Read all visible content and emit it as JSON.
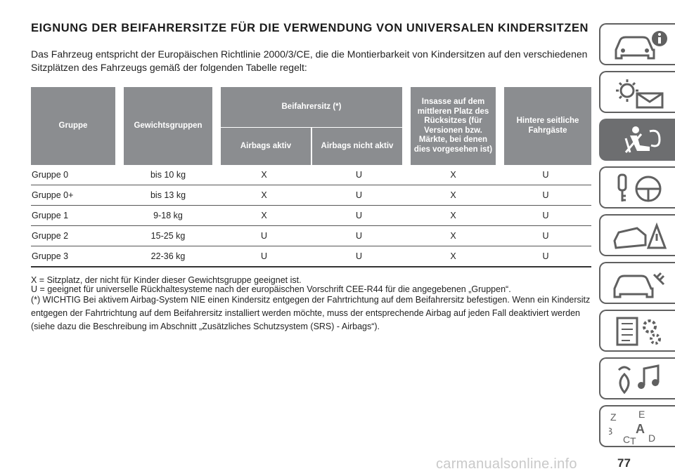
{
  "heading": {
    "title": "EIGNUNG DER BEIFAHRERSITZE FÜR DIE VERWENDUNG VON UNIVERSALEN KINDERSITZEN",
    "intro": "Das Fahrzeug entspricht der Europäischen Richtlinie 2000/3/CE, die die Montierbarkeit von Kindersitzen auf den verschiedenen Sitzplätzen des Fahrzeugs gemäß der folgenden Tabelle regelt:"
  },
  "table": {
    "headers": {
      "group": "Gruppe",
      "weight": "Gewichtsgruppen",
      "passenger_seat": "Beifahrersitz (*)",
      "airbags_active": "Airbags aktiv",
      "airbags_inactive": "Airbags nicht aktiv",
      "middle_rear": "Insasse auf dem mittleren Platz des Rücksitzes (für Versionen bzw. Märkte, bei denen dies vorgesehen ist)",
      "rear_side": "Hintere seitliche Fahrgäste"
    },
    "rows": [
      {
        "group": "Gruppe 0",
        "weight": "bis 10 kg",
        "active": "X",
        "inactive": "U",
        "middle": "X",
        "side": "U"
      },
      {
        "group": "Gruppe 0+",
        "weight": "bis 13 kg",
        "active": "X",
        "inactive": "U",
        "middle": "X",
        "side": "U"
      },
      {
        "group": "Gruppe 1",
        "weight": "9-18 kg",
        "active": "X",
        "inactive": "U",
        "middle": "X",
        "side": "U"
      },
      {
        "group": "Gruppe 2",
        "weight": "15-25 kg",
        "active": "U",
        "inactive": "U",
        "middle": "X",
        "side": "U"
      },
      {
        "group": "Gruppe 3",
        "weight": "22-36 kg",
        "active": "U",
        "inactive": "U",
        "middle": "X",
        "side": "U"
      }
    ]
  },
  "notes": {
    "x_meaning": "X = Sitzplatz, der nicht für Kinder dieser Gewichtsgruppe geeignet ist.",
    "u_meaning": "U = geeignet für universelle Rückhaltesysteme nach der europäischen Vorschrift CEE-R44 für die angegebenen „Gruppen“.",
    "warning": "(*) WICHTIG Bei aktivem Airbag-System NIE einen Kindersitz entgegen der Fahrtrichtung auf dem Beifahrersitz befestigen. Wenn ein Kindersitz entgegen der Fahrtrichtung auf dem Beifahrersitz installiert werden möchte, muss der entsprechende Airbag auf jeden Fall deaktiviert werden (siehe dazu die Beschreibung im Abschnitt „Zusätzliches Schutzsystem (SRS) - Airbags“)."
  },
  "sidebar": {
    "tabs": [
      {
        "icon": "car-info-icon",
        "active": false
      },
      {
        "icon": "warning-lights-icon",
        "active": false
      },
      {
        "icon": "seat-airbag-icon",
        "active": true
      },
      {
        "icon": "key-steering-icon",
        "active": false
      },
      {
        "icon": "emergency-icon",
        "active": false
      },
      {
        "icon": "car-maintenance-icon",
        "active": false
      },
      {
        "icon": "technical-data-icon",
        "active": false
      },
      {
        "icon": "multimedia-icon",
        "active": false
      },
      {
        "icon": "index-letters-icon",
        "active": false
      }
    ],
    "index_letters": [
      "Z",
      "E",
      "B",
      "A",
      "C",
      "T",
      "D"
    ]
  },
  "page_number": "77",
  "watermark": "carmanualsonline.info",
  "colors": {
    "header_bg": "#8b8d90",
    "active_tab": "#6d6e70",
    "tab_border": "#606060"
  }
}
